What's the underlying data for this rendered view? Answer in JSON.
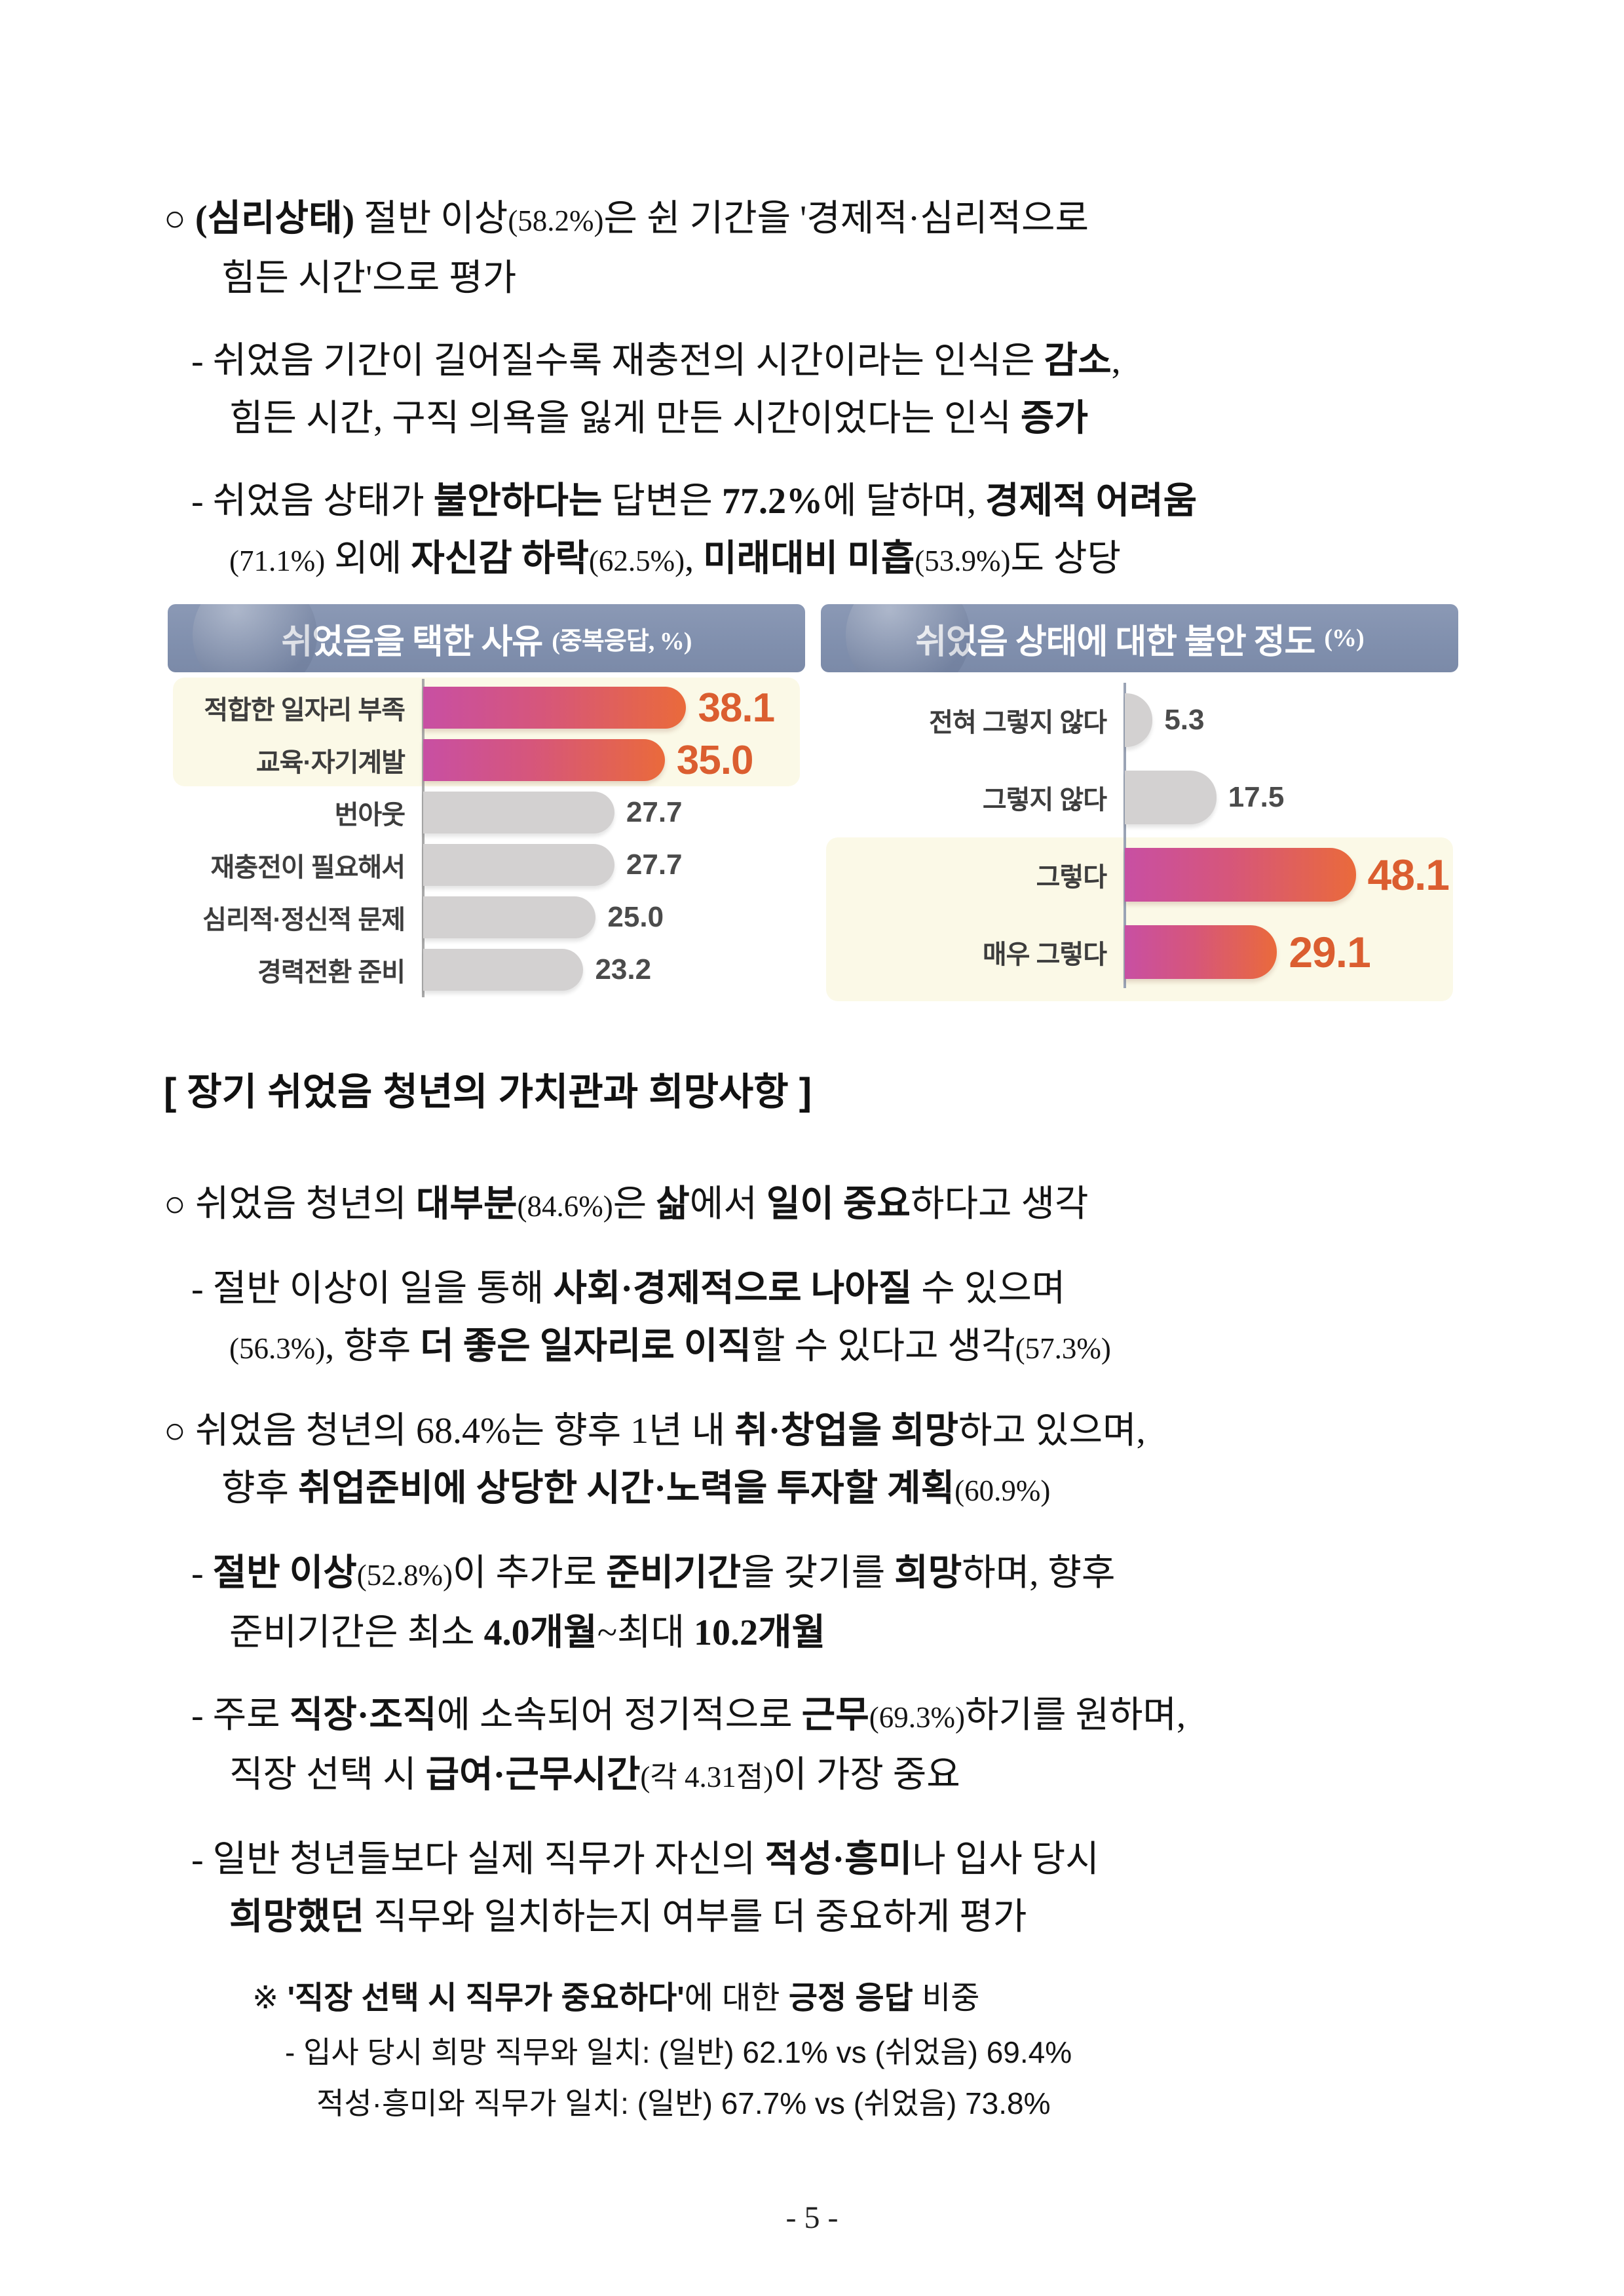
{
  "body": {
    "p1a": [
      {
        "t": "○ "
      },
      {
        "t": "(심리상태)"
      },
      {
        "t": " 절반 이상"
      },
      {
        "t": "(58.2%)"
      },
      {
        "t": "은 쉰 기간을 '경제적·심리적으로"
      }
    ],
    "p1b": [
      {
        "t": "힘든 시간'으로 평가"
      }
    ],
    "p2a": [
      {
        "t": "- 쉬었음 기간이 길어질수록 재충전의 시간이라는 인식은 "
      },
      {
        "t": "감소"
      },
      {
        "t": ","
      }
    ],
    "p2b": [
      {
        "t": "힘든 시간, 구직 의욕을 잃게 만든 시간이었다는 인식 "
      },
      {
        "t": "증가"
      }
    ],
    "p3a": [
      {
        "t": "- 쉬었음 상태가 "
      },
      {
        "t": "불안하다는"
      },
      {
        "t": " 답변은 "
      },
      {
        "t": "77.2%"
      },
      {
        "t": "에 달하며, "
      },
      {
        "t": "경제적 어려움"
      }
    ],
    "p3b": [
      {
        "t": "(71.1%)"
      },
      {
        "t": " 외에 "
      },
      {
        "t": "자신감 하락"
      },
      {
        "t": "(62.5%)"
      },
      {
        "t": ", "
      },
      {
        "t": "미래대비 미흡"
      },
      {
        "t": "(53.9%)"
      },
      {
        "t": "도 상당"
      }
    ],
    "section_head": "[ 장기 쉬었음 청년의 가치관과 희망사항 ]",
    "p4": [
      {
        "t": "○ 쉬었음 청년의 "
      },
      {
        "t": "대부분"
      },
      {
        "t": "(84.6%)"
      },
      {
        "t": "은 "
      },
      {
        "t": "삶"
      },
      {
        "t": "에서 "
      },
      {
        "t": "일이 중요"
      },
      {
        "t": "하다고 생각"
      }
    ],
    "p5a": [
      {
        "t": "- 절반 이상이 일을 통해 "
      },
      {
        "t": "사회·경제적으로 나아질"
      },
      {
        "t": " 수 있으며"
      }
    ],
    "p5b": [
      {
        "t": "(56.3%)"
      },
      {
        "t": ", 향후 "
      },
      {
        "t": "더 좋은 일자리로 이직"
      },
      {
        "t": "할 수 있다고 생각"
      },
      {
        "t": "(57.3%)"
      }
    ],
    "p6a": [
      {
        "t": "○ 쉬었음 청년의 68.4%는 향후 1년 내 "
      },
      {
        "t": "취·창업을 희망"
      },
      {
        "t": "하고 있으며,"
      }
    ],
    "p6b": [
      {
        "t": "향후 "
      },
      {
        "t": "취업준비에 상당한 시간·노력을 투자할 계획"
      },
      {
        "t": "(60.9%)"
      }
    ],
    "p7a": [
      {
        "t": "- "
      },
      {
        "t": "절반 이상"
      },
      {
        "t": "(52.8%)"
      },
      {
        "t": "이 추가로 "
      },
      {
        "t": "준비기간"
      },
      {
        "t": "을 갖기를 "
      },
      {
        "t": "희망"
      },
      {
        "t": "하며, 향후"
      }
    ],
    "p7b": [
      {
        "t": "준비기간은 최소 "
      },
      {
        "t": "4.0개월"
      },
      {
        "t": "~최대 "
      },
      {
        "t": "10.2개월"
      }
    ],
    "p8a": [
      {
        "t": "- 주로 "
      },
      {
        "t": "직장·조직"
      },
      {
        "t": "에 소속되어 정기적으로 "
      },
      {
        "t": "근무"
      },
      {
        "t": "(69.3%)"
      },
      {
        "t": "하기를 원하며,"
      }
    ],
    "p8b": [
      {
        "t": "직장 선택 시 "
      },
      {
        "t": "급여·근무시간"
      },
      {
        "t": "(각 4.31점)"
      },
      {
        "t": "이 가장 중요"
      }
    ],
    "p9a": [
      {
        "t": "- 일반 청년들보다 실제 직무가 자신의 "
      },
      {
        "t": "적성·흥미"
      },
      {
        "t": "나 입사 당시"
      }
    ],
    "p9b": [
      {
        "t": "희망했던"
      },
      {
        "t": " 직무와 일치하는지 여부를 더 중요하게 평가"
      }
    ],
    "note": [
      {
        "t": "※ "
      },
      {
        "t": "'직장 선택 시 직무가 중요하다'"
      },
      {
        "t": "에 대한 "
      },
      {
        "t": "긍정 응답"
      },
      {
        "t": " 비중"
      }
    ],
    "n1": "- 입사 당시 희망 직무와 일치: (일반) 62.1% vs (쉬었음) 69.4%",
    "n2": "적성·흥미와 직무가 일치: (일반) 67.7% vs (쉬었음) 73.8%"
  },
  "charts": {
    "left": {
      "title": "쉬었음을 택한 사유",
      "subtitle": "(중복응답, %)",
      "rows": [
        {
          "label": "적합한 일자리 부족",
          "value": "38.1",
          "v": 38.1
        },
        {
          "label": "교육·자기계발",
          "value": "35.0",
          "v": 35.0
        },
        {
          "label": "번아웃",
          "value": "27.7",
          "v": 27.7
        },
        {
          "label": "재충전이 필요해서",
          "value": "27.7",
          "v": 27.7
        },
        {
          "label": "심리적·정신적 문제",
          "value": "25.0",
          "v": 25.0
        },
        {
          "label": "경력전환 준비",
          "value": "23.2",
          "v": 23.2
        }
      ]
    },
    "right": {
      "title": "쉬었음 상태에 대한 불안 정도",
      "subtitle": "(%)",
      "rows": [
        {
          "label": "전혀 그렇지 않다",
          "value": "5.3",
          "v": 5.3
        },
        {
          "label": "그렇지 않다",
          "value": "17.5",
          "v": 17.5
        },
        {
          "label": "그렇다",
          "value": "48.1",
          "v": 48.1
        },
        {
          "label": "매우 그렇다",
          "value": "29.1",
          "v": 29.1
        }
      ]
    }
  },
  "chart_data": [
    {
      "type": "bar",
      "orientation": "horizontal",
      "title": "쉬었음을 택한 사유",
      "units_note": "중복응답, %",
      "categories": [
        "적합한 일자리 부족",
        "교육·자기계발",
        "번아웃",
        "재충전이 필요해서",
        "심리적·정신적 문제",
        "경력전환 준비"
      ],
      "values": [
        38.1,
        35.0,
        27.7,
        27.7,
        25.0,
        23.2
      ],
      "highlighted_categories": [
        "적합한 일자리 부족",
        "교육·자기계발"
      ],
      "xlim": [
        0,
        54
      ],
      "highlight_bar_color_gradient": [
        "#c84fa3",
        "#ea6a3b"
      ],
      "default_bar_color": "#d3d1d1",
      "highlight_value_color": "#db5e30",
      "header_color": "#8190ae",
      "highlight_row_background": "#fbf9e7"
    },
    {
      "type": "bar",
      "orientation": "horizontal",
      "title": "쉬었음 상태에 대한 불안 정도",
      "units_note": "%",
      "categories": [
        "전혀 그렇지 않다",
        "그렇지 않다",
        "그렇다",
        "매우 그렇다"
      ],
      "values": [
        5.3,
        17.5,
        48.1,
        29.1
      ],
      "highlighted_categories": [
        "그렇다",
        "매우 그렇다"
      ],
      "xlim": [
        0,
        62
      ],
      "highlight_bar_color_gradient": [
        "#c84fa3",
        "#ea6a3b"
      ],
      "default_bar_color": "#d3d1d1",
      "highlight_value_color": "#db5e30",
      "header_color": "#8190ae",
      "highlight_row_background": "#fbf9e7"
    }
  ],
  "footer": {
    "page_number": "- 5 -"
  }
}
